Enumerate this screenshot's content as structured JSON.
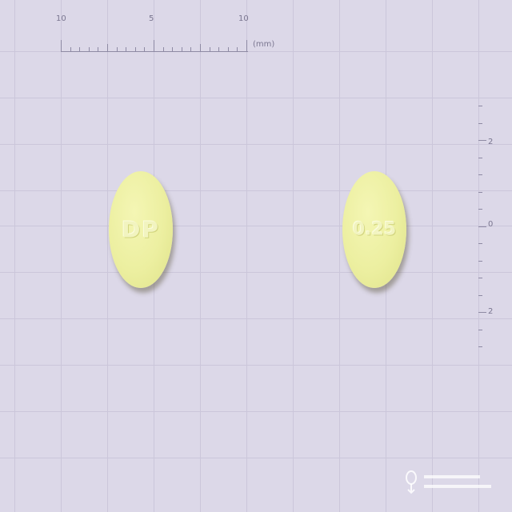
{
  "ruler": {
    "unit": "(mm)",
    "top_labels": [
      "10",
      "5",
      "10"
    ],
    "side_labels": [
      "2",
      "0",
      "2"
    ]
  },
  "pills": [
    {
      "imprint": "DP"
    },
    {
      "imprint": "0.25"
    }
  ],
  "colors": {
    "background": "#dcd8e8",
    "grid": "#cbc6da",
    "pill": "#ecefa0"
  }
}
